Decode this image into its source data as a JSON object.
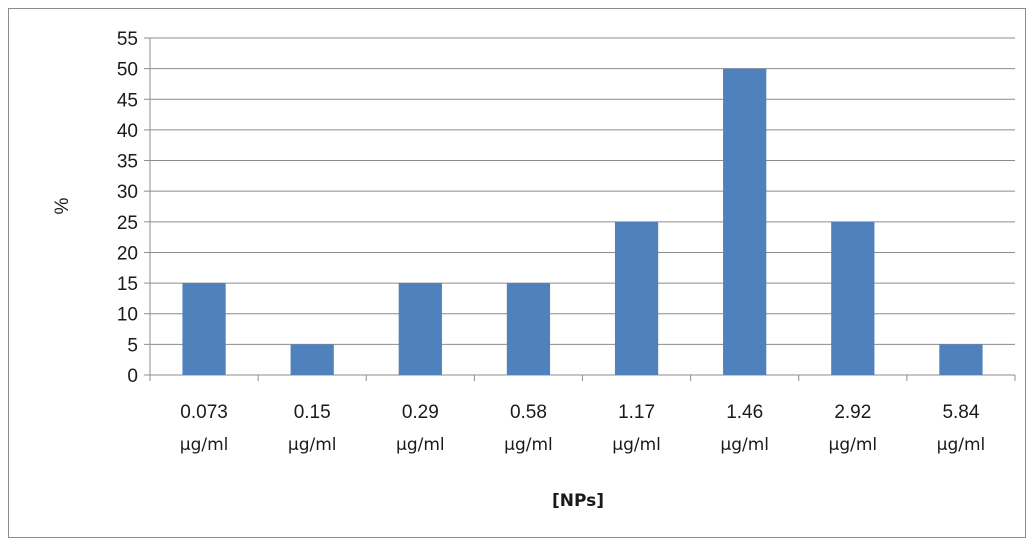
{
  "chart_data": {
    "type": "bar",
    "title": "",
    "xlabel": "[NPs]",
    "ylabel": "%",
    "ylim": [
      0,
      55
    ],
    "yticks": [
      0,
      5,
      10,
      15,
      20,
      25,
      30,
      35,
      40,
      45,
      50,
      55
    ],
    "grid": true,
    "legend": "none",
    "bar_color": "#4f81bd",
    "categories": [
      {
        "value": "0.073",
        "unit": "µg/ml"
      },
      {
        "value": "0.15",
        "unit": "µg/ml"
      },
      {
        "value": "0.29",
        "unit": "µg/ml"
      },
      {
        "value": "0.58",
        "unit": "µg/ml"
      },
      {
        "value": "1.17",
        "unit": "µg/ml"
      },
      {
        "value": "1.46",
        "unit": "µg/ml"
      },
      {
        "value": "2.92",
        "unit": "µg/ml"
      },
      {
        "value": "5.84",
        "unit": "µg/ml"
      }
    ],
    "values": [
      15,
      5,
      15,
      15,
      25,
      50,
      25,
      5
    ]
  }
}
